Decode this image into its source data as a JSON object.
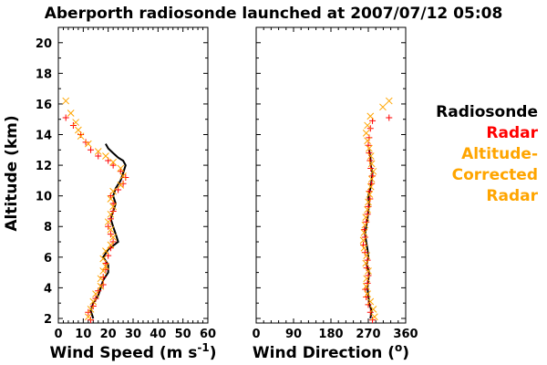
{
  "chart_data": {
    "title": "Aberporth radiosonde launched at 2007/07/12 05:08",
    "ylabel": "Altitude (km)",
    "y_ticks": [
      "2",
      "4",
      "6",
      "8",
      "10",
      "12",
      "14",
      "16",
      "18",
      "20"
    ],
    "ylim": [
      1.7,
      21
    ],
    "legend": [
      {
        "label": "Radiosonde",
        "color": "#000000"
      },
      {
        "label": "Radar",
        "color": "#ff0000"
      },
      {
        "label": "Altitude-",
        "color": "#ffa500"
      },
      {
        "label": "Corrected",
        "color": "#ffa500"
      },
      {
        "label": "Radar",
        "color": "#ffa500"
      }
    ],
    "panels": [
      {
        "type": "scatter",
        "xlabel_main": "Wind Speed (m s",
        "xlabel_sup": "-1",
        "xlabel_end": ")",
        "xlim": [
          0,
          60
        ],
        "x_ticks": [
          "0",
          "10",
          "20",
          "30",
          "40",
          "50",
          "60"
        ],
        "series": [
          {
            "name": "Radiosonde",
            "color": "#000000",
            "marker": "line",
            "points": [
              [
                14,
                2.0
              ],
              [
                13,
                2.5
              ],
              [
                14,
                3.0
              ],
              [
                16,
                3.5
              ],
              [
                17,
                4.0
              ],
              [
                18,
                4.5
              ],
              [
                20,
                5.0
              ],
              [
                20,
                5.5
              ],
              [
                18,
                6.0
              ],
              [
                20,
                6.5
              ],
              [
                24,
                7.0
              ],
              [
                23,
                7.5
              ],
              [
                22,
                8.0
              ],
              [
                21,
                8.5
              ],
              [
                22,
                9.0
              ],
              [
                23,
                9.5
              ],
              [
                22,
                10.0
              ],
              [
                23,
                10.5
              ],
              [
                25,
                11.0
              ],
              [
                26,
                11.5
              ],
              [
                27,
                12.0
              ],
              [
                26,
                12.3
              ],
              [
                24,
                12.5
              ],
              [
                22,
                12.8
              ],
              [
                20,
                13.1
              ],
              [
                19,
                13.4
              ]
            ]
          },
          {
            "name": "Radar",
            "color": "#ff0000",
            "marker": "+",
            "points": [
              [
                13,
                1.9
              ],
              [
                12,
                2.4
              ],
              [
                14,
                2.8
              ],
              [
                15,
                3.3
              ],
              [
                16,
                3.8
              ],
              [
                18,
                4.2
              ],
              [
                18,
                4.7
              ],
              [
                19,
                5.2
              ],
              [
                19,
                5.6
              ],
              [
                20,
                6.1
              ],
              [
                21,
                6.6
              ],
              [
                22,
                7.0
              ],
              [
                21,
                7.5
              ],
              [
                20,
                8.0
              ],
              [
                21,
                8.5
              ],
              [
                22,
                9.0
              ],
              [
                22,
                9.5
              ],
              [
                21,
                10.0
              ],
              [
                24,
                10.4
              ],
              [
                26,
                10.8
              ],
              [
                27,
                11.2
              ],
              [
                25,
                11.6
              ],
              [
                22,
                12.0
              ],
              [
                20,
                12.3
              ],
              [
                16,
                12.6
              ],
              [
                13,
                13.0
              ],
              [
                11,
                13.5
              ],
              [
                9,
                14.0
              ],
              [
                6,
                14.6
              ],
              [
                3,
                15.1
              ]
            ]
          },
          {
            "name": "Altitude-Corrected Radar",
            "color": "#ffa500",
            "marker": "x",
            "points": [
              [
                12,
                2.1
              ],
              [
                13,
                2.6
              ],
              [
                14,
                3.1
              ],
              [
                15,
                3.6
              ],
              [
                17,
                4.1
              ],
              [
                17,
                4.6
              ],
              [
                18,
                5.1
              ],
              [
                19,
                5.4
              ],
              [
                18,
                5.9
              ],
              [
                19,
                6.4
              ],
              [
                21,
                6.8
              ],
              [
                22,
                7.3
              ],
              [
                21,
                7.8
              ],
              [
                20,
                8.3
              ],
              [
                21,
                8.8
              ],
              [
                22,
                9.3
              ],
              [
                21,
                9.8
              ],
              [
                22,
                10.3
              ],
              [
                25,
                10.7
              ],
              [
                26,
                11.3
              ],
              [
                25,
                11.8
              ],
              [
                22,
                12.2
              ],
              [
                19,
                12.6
              ],
              [
                16,
                12.9
              ],
              [
                12,
                13.4
              ],
              [
                9,
                13.9
              ],
              [
                8,
                14.3
              ],
              [
                7,
                14.8
              ],
              [
                5,
                15.4
              ],
              [
                3,
                16.2
              ]
            ]
          }
        ]
      },
      {
        "type": "scatter",
        "xlabel_main": "Wind Direction (",
        "xlabel_sup": "o",
        "xlabel_end": ")",
        "xlim": [
          0,
          360
        ],
        "x_ticks": [
          "0",
          "90",
          "180",
          "270",
          "360"
        ],
        "series": [
          {
            "name": "Radiosonde",
            "color": "#000000",
            "marker": "line",
            "points": [
              [
                275,
                2.0
              ],
              [
                278,
                2.5
              ],
              [
                272,
                3.0
              ],
              [
                270,
                3.5
              ],
              [
                268,
                4.0
              ],
              [
                270,
                4.5
              ],
              [
                272,
                5.0
              ],
              [
                266,
                5.5
              ],
              [
                270,
                6.0
              ],
              [
                268,
                6.5
              ],
              [
                265,
                7.0
              ],
              [
                262,
                7.5
              ],
              [
                265,
                8.0
              ],
              [
                268,
                8.5
              ],
              [
                270,
                9.0
              ],
              [
                272,
                9.5
              ],
              [
                270,
                10.0
              ],
              [
                275,
                10.5
              ],
              [
                278,
                11.0
              ],
              [
                280,
                11.5
              ],
              [
                276,
                12.0
              ],
              [
                275,
                12.5
              ],
              [
                272,
                13.0
              ]
            ]
          },
          {
            "name": "Radar",
            "color": "#ff0000",
            "marker": "+",
            "points": [
              [
                280,
                1.9
              ],
              [
                275,
                2.4
              ],
              [
                270,
                2.9
              ],
              [
                265,
                3.4
              ],
              [
                263,
                3.9
              ],
              [
                268,
                4.3
              ],
              [
                270,
                4.8
              ],
              [
                266,
                5.3
              ],
              [
                268,
                5.8
              ],
              [
                262,
                6.3
              ],
              [
                258,
                6.8
              ],
              [
                262,
                7.3
              ],
              [
                260,
                7.8
              ],
              [
                265,
                8.3
              ],
              [
                268,
                8.8
              ],
              [
                270,
                9.3
              ],
              [
                274,
                9.8
              ],
              [
                272,
                10.3
              ],
              [
                278,
                10.8
              ],
              [
                280,
                11.3
              ],
              [
                276,
                11.8
              ],
              [
                274,
                12.3
              ],
              [
                272,
                12.8
              ],
              [
                270,
                13.3
              ],
              [
                272,
                13.8
              ],
              [
                275,
                14.4
              ],
              [
                280,
                14.9
              ],
              [
                320,
                15.1
              ]
            ]
          },
          {
            "name": "Altitude-Corrected Radar",
            "color": "#ffa500",
            "marker": "x",
            "points": [
              [
                285,
                2.1
              ],
              [
                282,
                2.6
              ],
              [
                275,
                3.1
              ],
              [
                268,
                3.6
              ],
              [
                265,
                4.1
              ],
              [
                266,
                4.6
              ],
              [
                270,
                5.1
              ],
              [
                264,
                5.6
              ],
              [
                266,
                6.1
              ],
              [
                260,
                6.6
              ],
              [
                258,
                7.1
              ],
              [
                260,
                7.6
              ],
              [
                262,
                8.1
              ],
              [
                264,
                8.6
              ],
              [
                268,
                9.1
              ],
              [
                270,
                9.6
              ],
              [
                273,
                10.1
              ],
              [
                276,
                10.6
              ],
              [
                278,
                11.1
              ],
              [
                282,
                11.6
              ],
              [
                278,
                12.1
              ],
              [
                276,
                12.6
              ],
              [
                272,
                13.1
              ],
              [
                268,
                13.6
              ],
              [
                265,
                14.1
              ],
              [
                268,
                14.6
              ],
              [
                275,
                15.2
              ],
              [
                305,
                15.8
              ],
              [
                320,
                16.2
              ]
            ]
          }
        ]
      }
    ]
  }
}
